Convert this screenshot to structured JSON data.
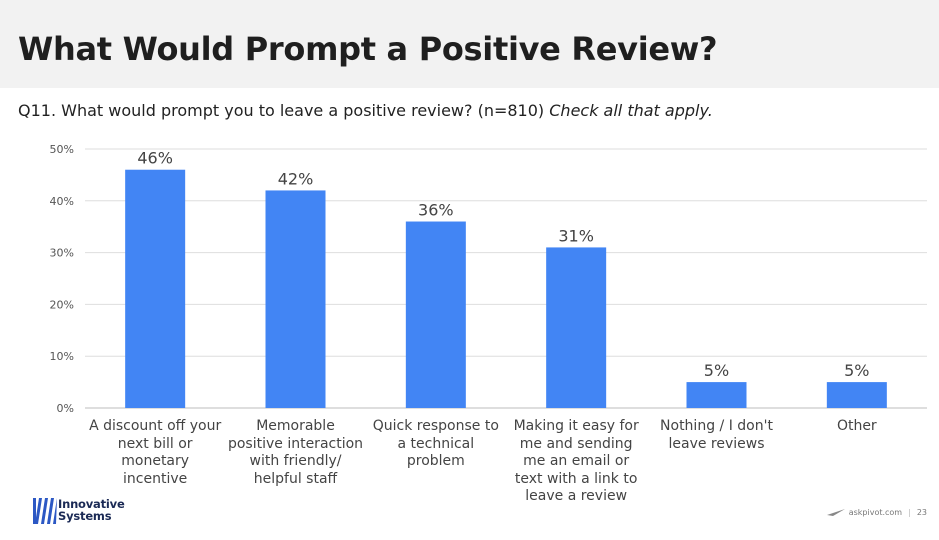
{
  "header": {
    "title": "What Would Prompt a Positive Review?"
  },
  "question": {
    "text": "Q11. What would prompt you to leave a positive review? (n=810)",
    "note": "Check all that apply."
  },
  "chart_data": {
    "type": "bar",
    "categories": [
      "A discount off your next bill or monetary incentive",
      "Memorable positive interaction with friendly/ helpful staff",
      "Quick response to a technical problem",
      "Making it easy for me and sending me an email or text with a link to leave a review",
      "Nothing / I don't leave reviews",
      "Other"
    ],
    "category_lines": [
      [
        "A discount off your",
        "next bill or",
        "monetary",
        "incentive"
      ],
      [
        "Memorable",
        "positive interaction",
        "with friendly/",
        "helpful staff"
      ],
      [
        "Quick response to",
        "a technical",
        "problem"
      ],
      [
        "Making it easy for",
        "me and sending",
        "me an email or",
        "text with a link to",
        "leave a review"
      ],
      [
        "Nothing / I don't",
        "leave reviews"
      ],
      [
        "Other"
      ]
    ],
    "values": [
      46,
      42,
      36,
      31,
      5,
      5
    ],
    "data_labels": [
      "46%",
      "42%",
      "36%",
      "31%",
      "5%",
      "5%"
    ],
    "ylim": [
      0,
      50
    ],
    "yticks": [
      0,
      10,
      20,
      30,
      40,
      50
    ],
    "ytick_labels": [
      "0%",
      "10%",
      "20%",
      "30%",
      "40%",
      "50%"
    ],
    "grid": true,
    "bar_color": "#4285f4",
    "title": "",
    "xlabel": "",
    "ylabel": ""
  },
  "logo": {
    "line1": "Innovative",
    "line2": "Systems",
    "color": "#2c58c4"
  },
  "footer": {
    "site": "askpivot.com",
    "separator": "|",
    "page": "23"
  }
}
